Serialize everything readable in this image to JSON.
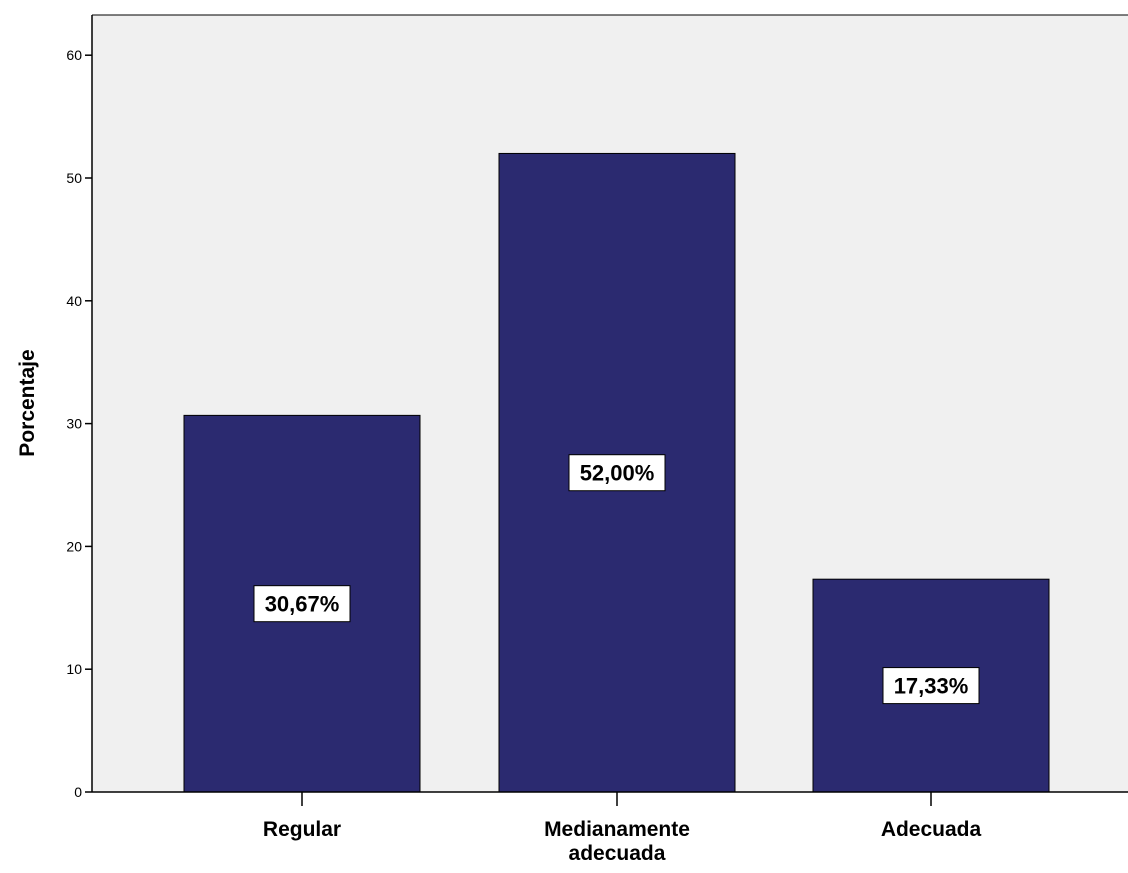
{
  "chart_data": {
    "type": "bar",
    "categories": [
      "Regular",
      "Medianamente adecuada",
      "Adecuada"
    ],
    "category_lines": [
      [
        "Regular"
      ],
      [
        "Medianamente",
        "adecuada"
      ],
      [
        "Adecuada"
      ]
    ],
    "values": [
      30.67,
      52.0,
      17.33
    ],
    "data_labels": [
      "30,67%",
      "52,00%",
      "17,33%"
    ],
    "ylabel": "Porcentaje",
    "xlabel": "",
    "title": "",
    "ylim": [
      0,
      63
    ],
    "yticks": [
      0,
      10,
      20,
      30,
      40,
      50,
      60
    ],
    "grid": false,
    "colors": {
      "bar": "#2b2a70",
      "plot_background": "#f0f0f0",
      "axis": "#000000",
      "label_box": "#ffffff"
    }
  }
}
